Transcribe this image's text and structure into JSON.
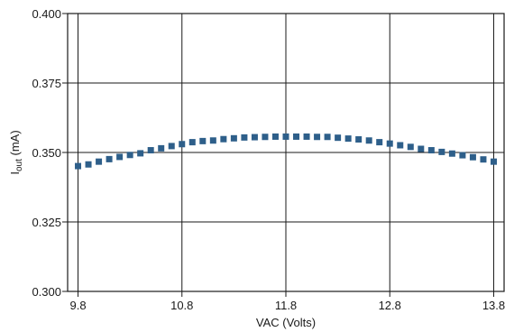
{
  "chart_data": {
    "type": "scatter",
    "title": "",
    "xlabel": "VAC (Volts)",
    "ylabel_main": "I",
    "ylabel_sub": "out",
    "ylabel_unit": " (mA)",
    "xlim": [
      9.7,
      13.9
    ],
    "ylim": [
      0.3,
      0.4
    ],
    "xticks": [
      "9.8",
      "10.8",
      "11.8",
      "12.8",
      "13.8"
    ],
    "yticks": [
      "0.300",
      "0.325",
      "0.350",
      "0.375",
      "0.400"
    ],
    "grid": true,
    "marker_color": "#2e5f8a",
    "series": [
      {
        "x": [
          9.8,
          9.9,
          10.0,
          10.1,
          10.2,
          10.3,
          10.4,
          10.5,
          10.6,
          10.7,
          10.8,
          10.9,
          11.0,
          11.1,
          11.2,
          11.3,
          11.4,
          11.5,
          11.6,
          11.7,
          11.8,
          11.9,
          12.0,
          12.1,
          12.2,
          12.3,
          12.4,
          12.5,
          12.6,
          12.7,
          12.8,
          12.9,
          13.0,
          13.1,
          13.2,
          13.3,
          13.4,
          13.5,
          13.6,
          13.7,
          13.8
        ],
        "values": [
          0.3451,
          0.3457,
          0.3467,
          0.3476,
          0.3484,
          0.3491,
          0.3497,
          0.3508,
          0.3515,
          0.3523,
          0.353,
          0.3537,
          0.3541,
          0.3543,
          0.3548,
          0.3551,
          0.3554,
          0.3555,
          0.3556,
          0.3557,
          0.3557,
          0.3557,
          0.3557,
          0.3556,
          0.3556,
          0.3553,
          0.355,
          0.3547,
          0.3543,
          0.3537,
          0.3532,
          0.3526,
          0.352,
          0.3513,
          0.3508,
          0.3502,
          0.3496,
          0.349,
          0.3483,
          0.3475,
          0.3467
        ]
      }
    ]
  }
}
